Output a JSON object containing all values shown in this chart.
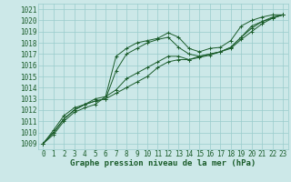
{
  "bg_color": "#cce8e8",
  "grid_color": "#99cccc",
  "line_color": "#1a5c2a",
  "text_color": "#1a5c2a",
  "title": "Graphe pression niveau de la mer (hPa)",
  "tick_fontsize": 5.5,
  "title_fontsize": 6.5,
  "xlim": [
    -0.5,
    23.5
  ],
  "ylim": [
    1008.5,
    1021.5
  ],
  "yticks": [
    1009,
    1010,
    1011,
    1012,
    1013,
    1014,
    1015,
    1016,
    1017,
    1018,
    1019,
    1020,
    1021
  ],
  "xticks": [
    0,
    1,
    2,
    3,
    4,
    5,
    6,
    7,
    8,
    9,
    10,
    11,
    12,
    13,
    14,
    15,
    16,
    17,
    18,
    19,
    20,
    21,
    22,
    23
  ],
  "series": [
    [
      1009.0,
      1009.8,
      1011.0,
      1011.8,
      1012.2,
      1012.5,
      1013.2,
      1016.8,
      1017.5,
      1018.0,
      1018.2,
      1018.4,
      1018.9,
      1018.5,
      1017.5,
      1017.2,
      1017.5,
      1017.6,
      1018.2,
      1019.5,
      1020.0,
      1020.3,
      1020.5,
      1020.5
    ],
    [
      1009.0,
      1010.0,
      1011.2,
      1012.0,
      1012.5,
      1012.8,
      1013.0,
      1015.5,
      1017.0,
      1017.5,
      1018.0,
      1018.3,
      1018.5,
      1017.6,
      1017.0,
      1016.8,
      1017.0,
      1017.2,
      1017.6,
      1018.5,
      1019.5,
      1019.9,
      1020.2,
      1020.5
    ],
    [
      1009.0,
      1010.2,
      1011.5,
      1012.2,
      1012.5,
      1013.0,
      1013.2,
      1013.8,
      1014.8,
      1015.3,
      1015.8,
      1016.3,
      1016.8,
      1016.8,
      1016.5,
      1016.7,
      1016.9,
      1017.2,
      1017.6,
      1018.5,
      1019.3,
      1019.9,
      1020.3,
      1020.5
    ],
    [
      1009.0,
      1010.0,
      1011.2,
      1012.0,
      1012.5,
      1012.8,
      1013.0,
      1013.5,
      1014.0,
      1014.5,
      1015.0,
      1015.8,
      1016.3,
      1016.5,
      1016.5,
      1016.8,
      1017.0,
      1017.2,
      1017.5,
      1018.3,
      1019.0,
      1019.7,
      1020.2,
      1020.5
    ]
  ]
}
